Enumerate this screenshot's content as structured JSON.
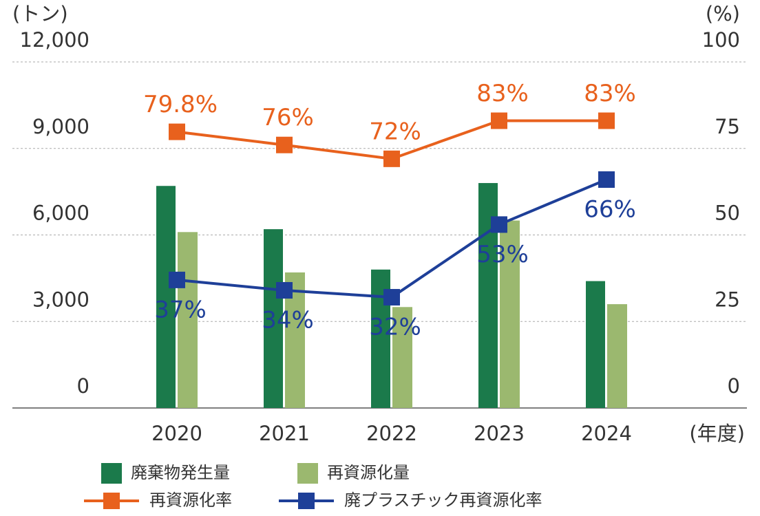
{
  "chart_data": {
    "type": "bar",
    "y_label": "(トン)",
    "y2_label": "(%)",
    "x_label": "(年度)",
    "categories": [
      "2020",
      "2021",
      "2022",
      "2023",
      "2024"
    ],
    "ylim": [
      0,
      12000
    ],
    "yticks": [
      0,
      {
        "value": 3000,
        "label": "3,000"
      },
      {
        "value": 6000,
        "label": "6,000"
      },
      {
        "value": 9000,
        "label": "9,000"
      },
      {
        "value": 12000,
        "label": "12,000"
      }
    ],
    "y2lim": [
      0,
      100
    ],
    "y2ticks": [
      0,
      25,
      50,
      75,
      100
    ],
    "grid": true,
    "series": [
      {
        "name": "廃棄物発生量",
        "type": "bar",
        "color": "#1b7a4b",
        "values": [
          7700,
          6200,
          4800,
          7800,
          4400
        ]
      },
      {
        "name": "再資源化量",
        "type": "bar",
        "color": "#9bb86f",
        "values": [
          6100,
          4700,
          3500,
          6500,
          3600
        ]
      },
      {
        "name": "再資源化率",
        "type": "line",
        "axis": "y2",
        "color": "#e8611d",
        "values": [
          79.8,
          76,
          72,
          83,
          83
        ],
        "value_labels": [
          "79.8%",
          "76%",
          "72%",
          "83%",
          "83%"
        ]
      },
      {
        "name": "廃プラスチック再資源化率",
        "type": "line",
        "axis": "y2",
        "color": "#1e3f98",
        "values": [
          37,
          34,
          32,
          53,
          66
        ],
        "value_labels": [
          "37%",
          "34%",
          "32%",
          "53%",
          "66%"
        ]
      }
    ]
  }
}
